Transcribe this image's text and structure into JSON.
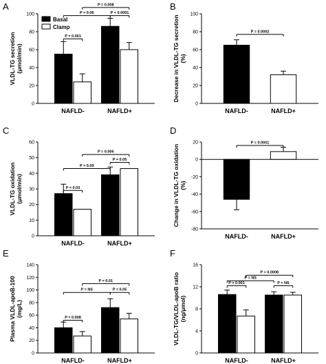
{
  "figure": {
    "panels": [
      "A",
      "B",
      "C",
      "D",
      "E",
      "F"
    ],
    "legend": {
      "basal": "Basal",
      "clamp": "Clamp"
    },
    "colors": {
      "basal": "#000000",
      "clamp": "#ffffff",
      "axis": "#000000"
    }
  },
  "chart_data": [
    {
      "panel": "A",
      "type": "bar",
      "ylabel_lines": [
        "VLDL-TG secretion",
        "(μmol/min)"
      ],
      "xlabel": "",
      "categories": [
        "NAFLD-",
        "NAFLD+"
      ],
      "ylim": [
        0,
        100
      ],
      "yticks": [
        0,
        20,
        40,
        60,
        80,
        100
      ],
      "legend": "top-left",
      "series": [
        {
          "name": "Basal",
          "values": [
            55,
            86
          ],
          "errors": [
            14,
            9
          ]
        },
        {
          "name": "Clamp",
          "values": [
            24,
            60
          ],
          "errors": [
            9,
            8
          ]
        }
      ],
      "annotations": [
        {
          "text": "P = 0.001",
          "from": [
            0,
            0
          ],
          "to": [
            0,
            1
          ],
          "y": 72
        },
        {
          "text": "P = 0.06",
          "from": [
            0,
            0
          ],
          "to": [
            1,
            0
          ],
          "y": 98
        },
        {
          "text": "P < 0.0001",
          "from": [
            1,
            0
          ],
          "to": [
            1,
            1
          ],
          "y": 98
        },
        {
          "text": "P = 0.008",
          "from": [
            0,
            1
          ],
          "to": [
            1,
            1
          ],
          "y": 107
        }
      ]
    },
    {
      "panel": "B",
      "type": "bar",
      "ylabel_lines": [
        "Decrease in VLDL-TG secretion",
        "(%)"
      ],
      "xlabel": "",
      "categories": [
        "NAFLD-",
        "NAFLD+"
      ],
      "ylim": [
        0,
        100
      ],
      "yticks": [
        0,
        20,
        40,
        60,
        80,
        100
      ],
      "series": [
        {
          "values": [
            65,
            32
          ],
          "errors": [
            6,
            4
          ],
          "colors": [
            "#000000",
            "#ffffff"
          ]
        }
      ],
      "annotations": [
        {
          "text": "P = 0.0002",
          "from": 0,
          "to": 1,
          "y": 77
        }
      ]
    },
    {
      "panel": "C",
      "type": "bar",
      "ylabel_lines": [
        "VLDL-TG oxidation",
        "(μmol/min)"
      ],
      "xlabel": "",
      "categories": [
        "NAFLD-",
        "NAFLD+"
      ],
      "ylim": [
        0,
        60
      ],
      "yticks": [
        0,
        10,
        20,
        30,
        40,
        50,
        60
      ],
      "series": [
        {
          "name": "Basal",
          "values": [
            27,
            39
          ],
          "errors": [
            6,
            5
          ]
        },
        {
          "name": "Clamp",
          "values": [
            17,
            43
          ],
          "errors": [
            0,
            0
          ]
        }
      ],
      "annotations": [
        {
          "text": "P = 0.03",
          "from": [
            0,
            0
          ],
          "to": [
            0,
            1
          ],
          "y": 29
        },
        {
          "text": "P = 0.09",
          "from": [
            0,
            0
          ],
          "to": [
            1,
            0
          ],
          "y": 43
        },
        {
          "text": "P = 0.05",
          "from": [
            1,
            0
          ],
          "to": [
            1,
            1
          ],
          "y": 47
        },
        {
          "text": "P = 0.006",
          "from": [
            0,
            1
          ],
          "to": [
            1,
            1
          ],
          "y": 52
        }
      ]
    },
    {
      "panel": "D",
      "type": "bar",
      "ylabel_lines": [
        "Change in VLDL-TG oxidation",
        "(%)"
      ],
      "xlabel": "",
      "categories": [
        "NAFLD-",
        "NAFLD+"
      ],
      "ylim": [
        -80,
        20
      ],
      "yticks": [
        -80,
        -60,
        -40,
        -20,
        0,
        20
      ],
      "series": [
        {
          "values": [
            -46,
            9
          ],
          "errors": [
            12,
            5
          ],
          "colors": [
            "#000000",
            "#ffffff"
          ]
        }
      ],
      "annotations": [
        {
          "text": "P = 0.0001",
          "from": 0,
          "to": 1,
          "y": 16
        }
      ]
    },
    {
      "panel": "E",
      "type": "bar",
      "ylabel_lines": [
        "Plasma VLDL-apoB-100",
        "(mg/L)"
      ],
      "xlabel": "",
      "categories": [
        "NAFLD-",
        "NAFLD+"
      ],
      "ylim": [
        0,
        140
      ],
      "yticks": [
        0,
        20,
        40,
        60,
        80,
        100,
        120,
        140
      ],
      "series": [
        {
          "name": "Basal",
          "values": [
            40,
            72
          ],
          "errors": [
            9,
            14
          ]
        },
        {
          "name": "Clamp",
          "values": [
            27,
            54
          ],
          "errors": [
            7,
            9
          ]
        }
      ],
      "annotations": [
        {
          "text": "P = 0.008",
          "from": [
            0,
            0
          ],
          "to": [
            0,
            1
          ],
          "y": 52
        },
        {
          "text": "P = NS",
          "from": [
            0,
            0
          ],
          "to": [
            1,
            0
          ],
          "y": 96
        },
        {
          "text": "P = 0.05",
          "from": [
            1,
            0
          ],
          "to": [
            1,
            1
          ],
          "y": 96
        },
        {
          "text": "P = 0.01",
          "from": [
            0,
            1
          ],
          "to": [
            1,
            1
          ],
          "y": 110
        }
      ]
    },
    {
      "panel": "F",
      "type": "bar",
      "ylabel_lines": [
        "VLDL-TG/VLDL-apoB ratio",
        "(ng/μmol)"
      ],
      "xlabel": "",
      "categories": [
        "NAFLD-",
        "NAFLD+"
      ],
      "ylim": [
        0,
        16
      ],
      "yticks": [
        0,
        4,
        8,
        12,
        16
      ],
      "series": [
        {
          "name": "Basal",
          "values": [
            10.6,
            10.5
          ],
          "errors": [
            0.8,
            0.6
          ]
        },
        {
          "name": "Clamp",
          "values": [
            6.7,
            10.5
          ],
          "errors": [
            1.1,
            0.5
          ]
        }
      ],
      "annotations": [
        {
          "text": "P = 0.001",
          "from": [
            0,
            0
          ],
          "to": [
            0,
            1
          ],
          "y": 12.2
        },
        {
          "text": "P = NS",
          "from": [
            0,
            0
          ],
          "to": [
            1,
            0
          ],
          "y": 13.1
        },
        {
          "text": "P = NS",
          "from": [
            1,
            0
          ],
          "to": [
            1,
            1
          ],
          "y": 12.2
        },
        {
          "text": "P = 0.0008",
          "from": [
            0,
            1
          ],
          "to": [
            1,
            1
          ],
          "y": 14.1
        }
      ]
    }
  ]
}
